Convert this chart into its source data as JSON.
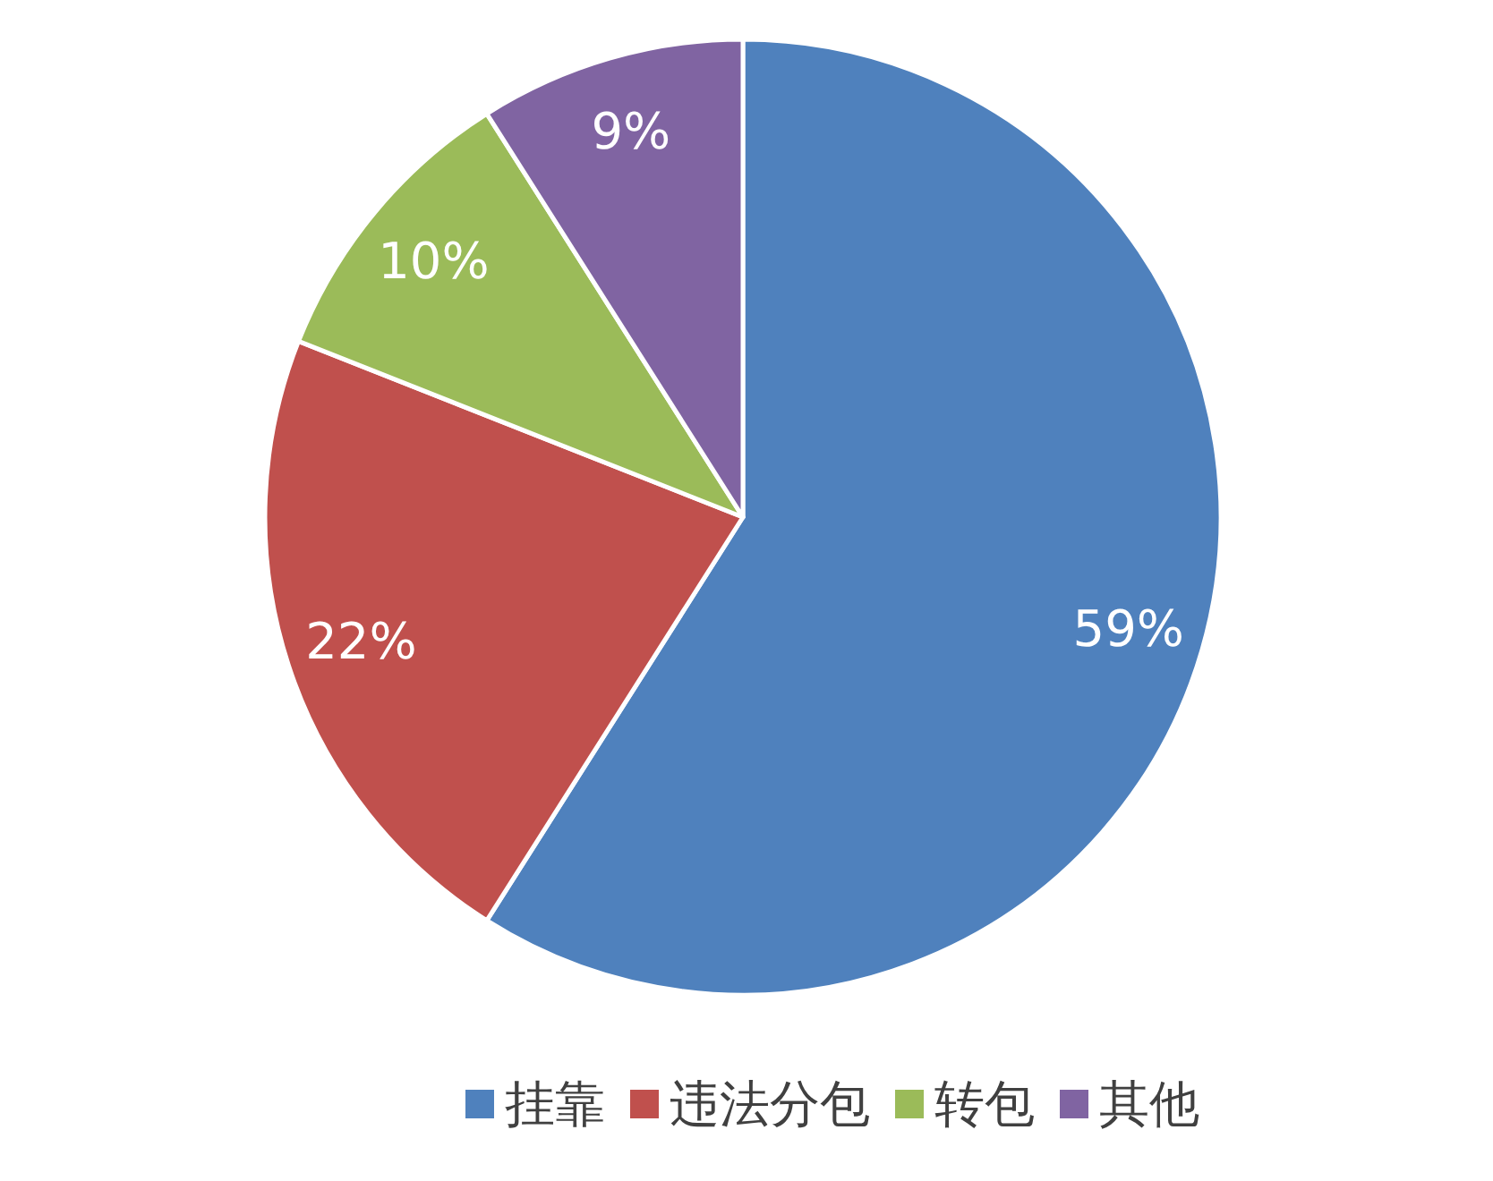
{
  "chart_data": {
    "type": "pie",
    "categories": [
      "挂靠",
      "违法分包",
      "转包",
      "其他"
    ],
    "values": [
      59,
      22,
      10,
      9
    ],
    "colors": [
      "#4f81bd",
      "#c0504d",
      "#9bbb59",
      "#8064a2"
    ],
    "value_labels": [
      "59%",
      "22%",
      "10%",
      "9%"
    ],
    "legend": "bottom"
  }
}
